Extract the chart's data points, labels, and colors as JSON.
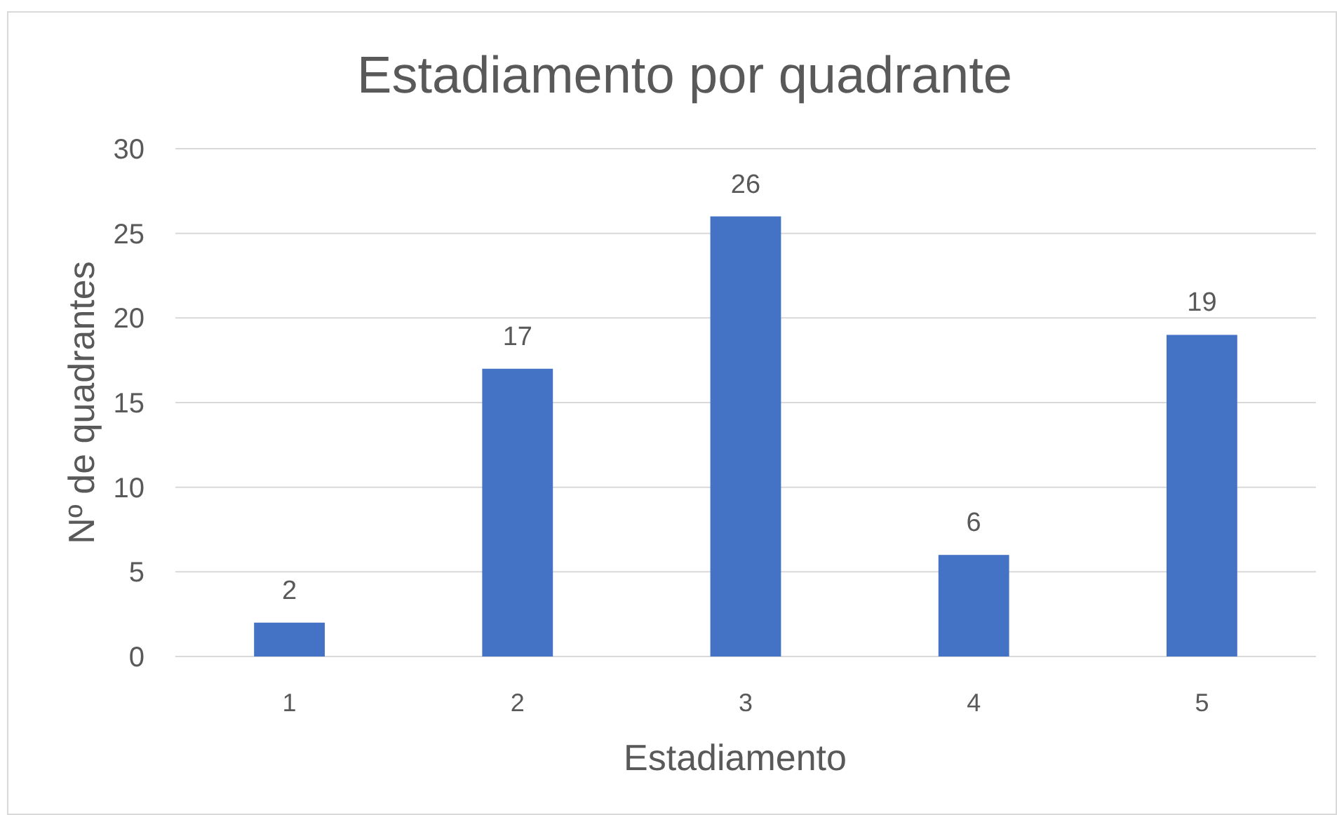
{
  "chart_data": {
    "type": "bar",
    "title": "Estadiamento por quadrante",
    "xlabel": "Estadiamento",
    "ylabel": "Nº de quadrantes",
    "categories": [
      "1",
      "2",
      "3",
      "4",
      "5"
    ],
    "values": [
      2,
      17,
      26,
      6,
      19
    ],
    "color": "#4472c4",
    "ylim": [
      0,
      30
    ],
    "yticks": [
      0,
      5,
      10,
      15,
      20,
      25,
      30
    ],
    "grid": "y",
    "data_labels": true
  }
}
